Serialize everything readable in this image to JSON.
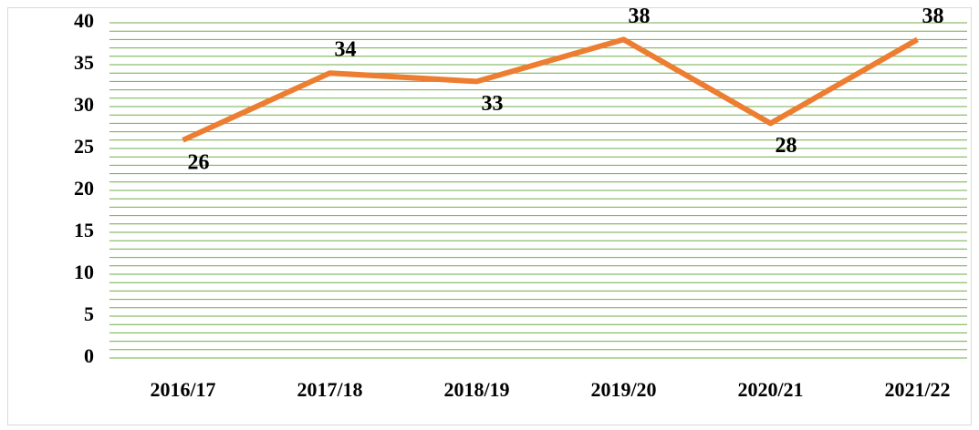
{
  "chart_data": {
    "type": "line",
    "categories": [
      "2016/17",
      "2017/18",
      "2018/19",
      "2019/20",
      "2020/21",
      "2021/22"
    ],
    "series": [
      {
        "values": [
          26,
          34,
          33,
          38,
          28,
          38
        ],
        "color": "#ed7d31"
      }
    ],
    "label_positions": [
      "below",
      "above",
      "below",
      "above",
      "below",
      "above"
    ],
    "ylim": [
      0,
      40
    ],
    "yticks": [
      0,
      5,
      10,
      15,
      20,
      25,
      30,
      35,
      40
    ],
    "grid": true,
    "minor_grid_step": 1,
    "grid_color": "#70ad47"
  }
}
